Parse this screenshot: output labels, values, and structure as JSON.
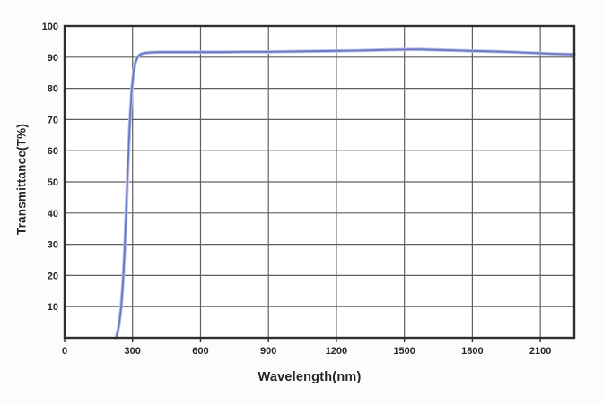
{
  "figure": {
    "background": "#fcfcfc",
    "plot_background": "#ffffff"
  },
  "chart_data": {
    "type": "line",
    "title": "",
    "xlabel": "Wavelength(nm)",
    "ylabel": "Transmittance(T%)",
    "xlim": [
      0,
      2250
    ],
    "ylim": [
      0,
      100
    ],
    "x_ticks": [
      0,
      300,
      600,
      900,
      1200,
      1500,
      1800,
      2100
    ],
    "x_tick_labels": [
      "0",
      "300",
      "600",
      "900",
      "1200",
      "1500",
      "1800",
      "2100"
    ],
    "y_ticks": [
      10,
      20,
      30,
      40,
      50,
      60,
      70,
      80,
      90,
      100
    ],
    "y_tick_labels": [
      "10",
      "20",
      "30",
      "40",
      "50",
      "60",
      "70",
      "80",
      "90",
      "100"
    ],
    "grid": true,
    "legend": "none",
    "colors": {
      "line": "#6a76c4",
      "line_halo": "#bdc4e8",
      "grid": "#5f5f5f",
      "border": "#2e2e2e",
      "text": "#262626"
    },
    "series": [
      {
        "name": "Transmittance",
        "x": [
          228,
          240,
          250,
          258,
          265,
          272,
          280,
          288,
          296,
          304,
          312,
          322,
          334,
          350,
          375,
          420,
          500,
          600,
          700,
          800,
          900,
          1000,
          1100,
          1200,
          1300,
          1400,
          1500,
          1560,
          1650,
          1750,
          1850,
          1950,
          2050,
          2150,
          2250
        ],
        "y": [
          0,
          4,
          10,
          18,
          28,
          41,
          56,
          69,
          79,
          85,
          88.3,
          90,
          90.9,
          91.3,
          91.5,
          91.6,
          91.6,
          91.6,
          91.6,
          91.7,
          91.7,
          91.8,
          91.9,
          92.0,
          92.1,
          92.3,
          92.4,
          92.5,
          92.3,
          92.1,
          91.9,
          91.7,
          91.4,
          91.1,
          90.9
        ]
      }
    ]
  }
}
